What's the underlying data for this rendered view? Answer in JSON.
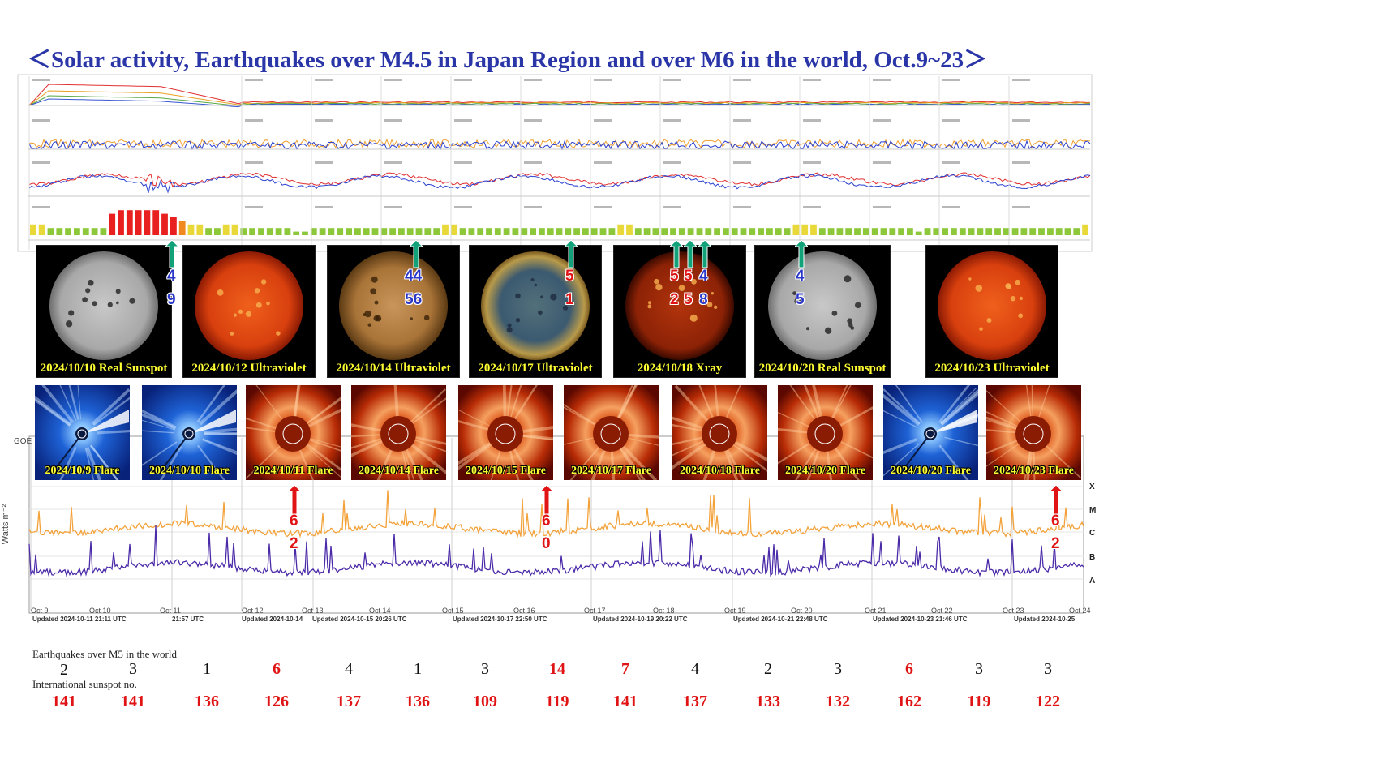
{
  "title": "＜Solar activity, Earthquakes over M4.5 in Japan Region and over M6 in the world, Oct.9~23＞",
  "colors": {
    "title": "#2a36a8",
    "caption": "#ffff33",
    "red_value": "#e01414",
    "blue_value": "#2a36c8",
    "arrow_green": "#12a27a",
    "arrow_red": "#e01414",
    "goes_long": "#f3a23a",
    "goes_short": "#4a2aa8"
  },
  "sun_images": [
    {
      "caption": "2024/10/10 Real Sunspot",
      "kind": "sunspot"
    },
    {
      "caption": "2024/10/12 Ultraviolet",
      "kind": "uv-red"
    },
    {
      "caption": "2024/10/14 Ultraviolet",
      "kind": "uv-gold"
    },
    {
      "caption": "2024/10/17 Ultraviolet",
      "kind": "uv-mix"
    },
    {
      "caption": "2024/10/18 Xray",
      "kind": "xray"
    },
    {
      "caption": "2024/10/20 Real Sunspot",
      "kind": "sunspot"
    },
    {
      "caption": "2024/10/23 Ultraviolet",
      "kind": "uv-red"
    }
  ],
  "sun_markers": [
    {
      "top": "4",
      "bottom": "9",
      "color": "blue"
    },
    {
      "top": "44",
      "bottom": "56",
      "color": "blue"
    },
    {
      "top": "5",
      "bottom": "1",
      "color": "red"
    },
    {
      "top": "5",
      "bottom": "2",
      "color": "red"
    },
    {
      "top": "5",
      "bottom": "5",
      "color": "red"
    },
    {
      "top": "4",
      "bottom": "8",
      "color": "blue"
    },
    {
      "top": "4",
      "bottom": "5",
      "color": "blue"
    }
  ],
  "coronagraphs": [
    {
      "caption": "2024/10/9 Flare",
      "kind": "blue"
    },
    {
      "caption": "2024/10/10 Flare",
      "kind": "blue"
    },
    {
      "caption": "2024/10/11 Flare",
      "kind": "red"
    },
    {
      "caption": "2024/10/14 Flare",
      "kind": "red"
    },
    {
      "caption": "2024/10/15 Flare",
      "kind": "red"
    },
    {
      "caption": "2024/10/17 Flare",
      "kind": "red"
    },
    {
      "caption": "2024/10/18 Flare",
      "kind": "red"
    },
    {
      "caption": "2024/10/20 Flare",
      "kind": "red"
    },
    {
      "caption": "2024/10/20 Flare",
      "kind": "blue"
    },
    {
      "caption": "2024/10/23 Flare",
      "kind": "red"
    }
  ],
  "flare_markers": [
    {
      "top": "6",
      "bottom": "2"
    },
    {
      "top": "6",
      "bottom": "0"
    },
    {
      "top": "6",
      "bottom": "2"
    }
  ],
  "goes_chart": {
    "ylabel": "Watts m⁻²",
    "ylabel_short": "GOE",
    "classes": [
      "X",
      "M",
      "C",
      "B",
      "A"
    ],
    "x_ticks": [
      "Oct 9",
      "Oct 10",
      "Oct 11",
      "Oct 12",
      "Oct 13",
      "Oct 14",
      "Oct 15",
      "Oct 16",
      "Oct 17",
      "Oct 18",
      "Oct 19",
      "Oct 20",
      "Oct 21",
      "Oct 22",
      "Oct 23",
      "Oct 24"
    ],
    "updated": [
      "Updated 2024-10-11 21:11 UTC",
      "21:57 UTC",
      "Updated 2024-10-14",
      "Updated 2024-10-15 20:26 UTC",
      "Updated 2024-10-17 22:50 UTC",
      "Updated 2024-10-19 20:22 UTC",
      "Updated 2024-10-21 22:48 UTC",
      "Updated 2024-10-23 21:46 UTC",
      "Updated 2024-10-25"
    ]
  },
  "kp_index": {
    "levels": [
      3,
      3,
      2,
      2,
      2,
      2,
      2,
      2,
      2,
      6,
      7,
      7,
      7,
      7,
      7,
      6,
      5,
      4,
      3,
      3,
      2,
      2,
      3,
      3,
      2,
      2,
      2,
      2,
      2,
      2,
      1,
      1,
      2,
      2,
      2,
      2,
      2,
      2,
      2,
      2,
      2,
      2,
      2,
      2,
      2,
      2,
      2,
      3,
      3,
      2,
      2,
      2,
      2,
      2,
      2,
      2,
      2,
      2,
      2,
      2,
      2,
      2,
      2,
      2,
      2,
      2,
      2,
      3,
      3,
      2,
      2,
      2,
      2,
      2,
      2,
      2,
      2,
      2,
      2,
      2,
      2,
      2,
      2,
      2,
      2,
      2,
      2,
      3,
      3,
      3,
      2,
      2,
      2,
      2,
      2,
      2,
      2,
      2,
      2,
      2,
      2,
      1,
      2,
      2,
      2,
      2,
      2,
      2,
      2,
      2,
      2,
      2,
      2,
      2,
      2,
      2,
      2,
      2,
      2,
      2,
      3
    ]
  },
  "earthquakes": {
    "label": "Earthquakes over M5 in the world",
    "values": [
      {
        "v": "2",
        "hl": false
      },
      {
        "v": "3",
        "hl": false
      },
      {
        "v": "1",
        "hl": false
      },
      {
        "v": "6",
        "hl": true
      },
      {
        "v": "4",
        "hl": false
      },
      {
        "v": "1",
        "hl": false
      },
      {
        "v": "3",
        "hl": false
      },
      {
        "v": "14",
        "hl": true
      },
      {
        "v": "7",
        "hl": true
      },
      {
        "v": "4",
        "hl": false
      },
      {
        "v": "2",
        "hl": false
      },
      {
        "v": "3",
        "hl": false
      },
      {
        "v": "6",
        "hl": true
      },
      {
        "v": "3",
        "hl": false
      },
      {
        "v": "3",
        "hl": false
      }
    ]
  },
  "sunspots": {
    "label": "International sunspot no.",
    "values": [
      "141",
      "141",
      "136",
      "126",
      "137",
      "136",
      "109",
      "119",
      "141",
      "137",
      "133",
      "132",
      "162",
      "119",
      "122"
    ]
  }
}
